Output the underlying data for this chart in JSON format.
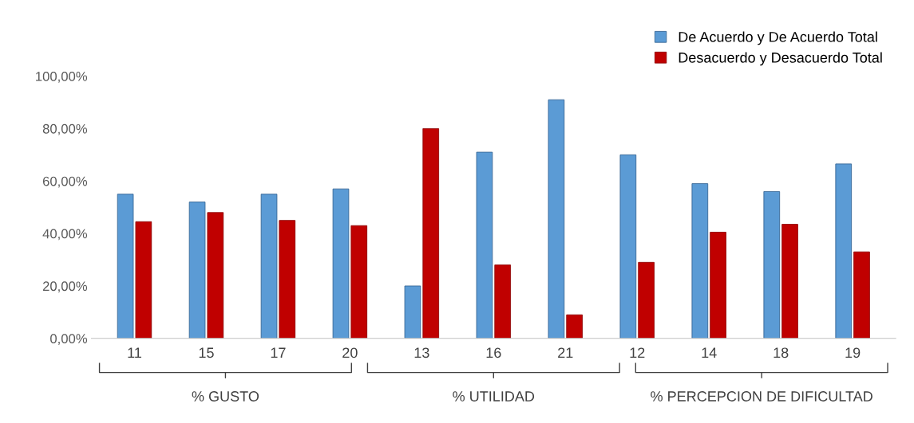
{
  "chart_data": {
    "type": "bar",
    "categories": [
      "11",
      "15",
      "17",
      "20",
      "13",
      "16",
      "21",
      "12",
      "14",
      "18",
      "19"
    ],
    "series": [
      {
        "name": "De Acuerdo y De Acuerdo Total",
        "color": "#5b9bd5",
        "values": [
          55,
          52,
          55,
          57,
          20,
          71,
          91,
          70,
          59,
          56,
          66.5
        ]
      },
      {
        "name": "Desacuerdo y Desacuerdo Total",
        "color": "#c00000",
        "values": [
          44.5,
          48,
          45,
          43,
          80,
          28,
          9,
          29,
          40.5,
          43.5,
          33
        ]
      }
    ],
    "ylim": [
      0,
      100
    ],
    "yticks": [
      {
        "value": 0,
        "label": "0,00%"
      },
      {
        "value": 20,
        "label": "20,00%"
      },
      {
        "value": 40,
        "label": "40,00%"
      },
      {
        "value": 60,
        "label": "60,00%"
      },
      {
        "value": 80,
        "label": "80,00%"
      },
      {
        "value": 100,
        "label": "100,00%"
      }
    ],
    "grid": false,
    "legend": "top right",
    "annotations": [
      "% GUSTO",
      "% UTILIDAD",
      "% PERCEPCION DE DIFICULTAD"
    ]
  }
}
